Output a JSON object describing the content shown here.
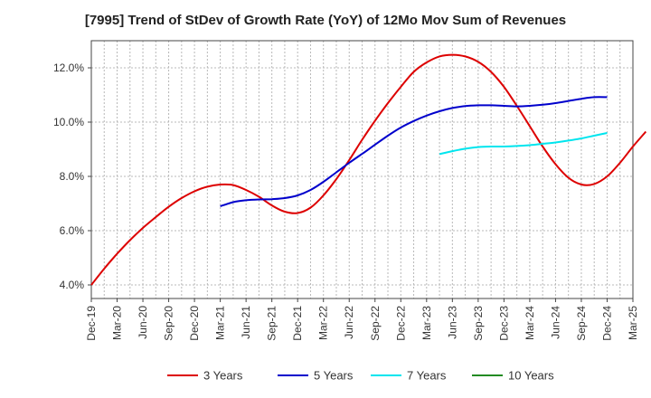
{
  "chart_data": {
    "type": "line",
    "title": "[7995]  Trend of StDev of Growth Rate (YoY) of 12Mo Mov Sum of Revenues",
    "xlabel": "",
    "ylabel": "",
    "x_tick_labels": [
      "Dec-19",
      "Mar-20",
      "Jun-20",
      "Sep-20",
      "Dec-20",
      "Mar-21",
      "Jun-21",
      "Sep-21",
      "Dec-21",
      "Mar-22",
      "Jun-22",
      "Sep-22",
      "Dec-22",
      "Mar-23",
      "Jun-23",
      "Sep-23",
      "Dec-23",
      "Mar-24",
      "Jun-24",
      "Sep-24",
      "Dec-24",
      "Mar-25"
    ],
    "ylim": [
      3.5,
      13.0
    ],
    "y_ticks": [
      4.0,
      6.0,
      8.0,
      10.0,
      12.0
    ],
    "y_tick_labels": [
      "4.0%",
      "6.0%",
      "8.0%",
      "10.0%",
      "12.0%"
    ],
    "grid": true,
    "legend_position": "bottom",
    "series": [
      {
        "name": "3 Years",
        "color": "#dd0000",
        "start_index": 0,
        "values": [
          4.0,
          4.6,
          5.15,
          5.65,
          6.1,
          6.5,
          6.88,
          7.2,
          7.45,
          7.62,
          7.7,
          7.68,
          7.5,
          7.25,
          6.93,
          6.7,
          6.65,
          6.85,
          7.3,
          7.9,
          8.6,
          9.35,
          10.05,
          10.7,
          11.3,
          11.85,
          12.2,
          12.42,
          12.48,
          12.42,
          12.22,
          11.85,
          11.3,
          10.6,
          9.85,
          9.1,
          8.45,
          7.95,
          7.7,
          7.72,
          8.0,
          8.5,
          9.1,
          9.65
        ]
      },
      {
        "name": "5 Years",
        "color": "#0000cc",
        "start_index": 10,
        "values": [
          6.9,
          7.05,
          7.12,
          7.15,
          7.16,
          7.2,
          7.3,
          7.5,
          7.8,
          8.15,
          8.5,
          8.83,
          9.17,
          9.5,
          9.8,
          10.04,
          10.24,
          10.4,
          10.52,
          10.59,
          10.62,
          10.62,
          10.6,
          10.58,
          10.6,
          10.64,
          10.7,
          10.78,
          10.86,
          10.92,
          10.92
        ]
      },
      {
        "name": "7 Years",
        "color": "#00e5ee",
        "start_index": 27,
        "values": [
          8.82,
          8.93,
          9.02,
          9.08,
          9.1,
          9.1,
          9.12,
          9.15,
          9.2,
          9.25,
          9.32,
          9.4,
          9.5,
          9.6
        ]
      },
      {
        "name": "10 Years",
        "color": "#228b22",
        "start_index": 0,
        "values": []
      }
    ]
  }
}
